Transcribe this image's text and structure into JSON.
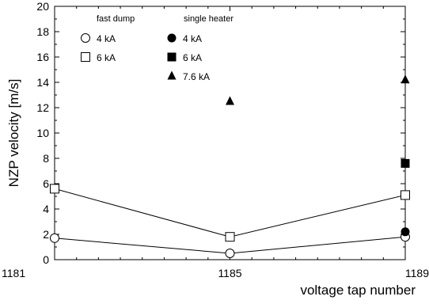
{
  "chart_data": {
    "type": "scatter",
    "xlabel": "voltage tap number",
    "ylabel": "NZP velocity [m/s]",
    "xlim": [
      1181,
      1189
    ],
    "ylim": [
      0,
      20
    ],
    "x_ticks": [
      1181,
      1185,
      1189
    ],
    "y_ticks": [
      0,
      2,
      4,
      6,
      8,
      10,
      12,
      14,
      16,
      18,
      20
    ],
    "grid": false,
    "legend_placement": "top-left",
    "legend_groups": [
      "fast dump",
      "single heater"
    ],
    "series": [
      {
        "name": "4 kA",
        "group": "fast dump",
        "marker": "open-circle",
        "connected": true,
        "points": [
          {
            "x": 1181,
            "y": 1.7
          },
          {
            "x": 1185,
            "y": 0.5
          },
          {
            "x": 1189,
            "y": 1.8
          }
        ]
      },
      {
        "name": "6 kA",
        "group": "fast dump",
        "marker": "open-square",
        "connected": true,
        "points": [
          {
            "x": 1181,
            "y": 5.6
          },
          {
            "x": 1185,
            "y": 1.8
          },
          {
            "x": 1189,
            "y": 5.1
          }
        ]
      },
      {
        "name": "4 kA",
        "group": "single heater",
        "marker": "filled-circle",
        "connected": false,
        "points": [
          {
            "x": 1189,
            "y": 2.2
          }
        ]
      },
      {
        "name": "6 kA",
        "group": "single heater",
        "marker": "filled-square",
        "connected": false,
        "points": [
          {
            "x": 1189,
            "y": 7.6
          }
        ]
      },
      {
        "name": "7.6 kA",
        "group": "single heater",
        "marker": "filled-triangle",
        "connected": false,
        "points": [
          {
            "x": 1185,
            "y": 12.5
          },
          {
            "x": 1189,
            "y": 14.2
          }
        ]
      }
    ]
  }
}
